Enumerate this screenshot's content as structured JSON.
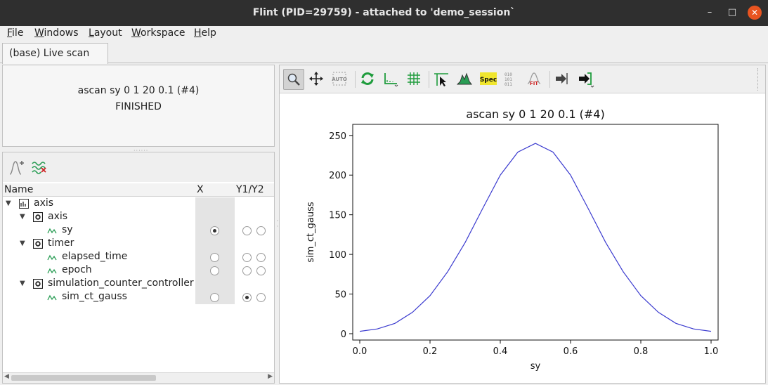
{
  "window": {
    "title": "Flint (PID=29759) - attached to 'demo_session`",
    "minimize_glyph": "–",
    "maximize_glyph": "□",
    "close_glyph": "✕"
  },
  "menu": {
    "file": {
      "accel": "F",
      "rest": "ile"
    },
    "windows": {
      "accel": "W",
      "rest": "indows"
    },
    "layout": {
      "accel": "L",
      "rest": "ayout"
    },
    "workspace": {
      "accel": "W",
      "rest": "orkspace"
    },
    "help": {
      "accel": "H",
      "rest": "elp"
    }
  },
  "tab": {
    "label": "(base) Live scan"
  },
  "scan": {
    "title": "ascan sy 0 1 20 0.1 (#4)",
    "status": "FINISHED"
  },
  "tree": {
    "columns": {
      "name": "Name",
      "x": "X",
      "y": "Y1/Y2"
    },
    "rows": [
      {
        "label": "axis",
        "icon": "axis-group-icon"
      },
      {
        "label": "axis",
        "icon": "device-icon"
      },
      {
        "label": "sy",
        "icon": "channel-icon",
        "x_selected": true,
        "y1": false,
        "y2": false
      },
      {
        "label": "timer",
        "icon": "device-icon"
      },
      {
        "label": "elapsed_time",
        "icon": "channel-icon",
        "x_selected": false,
        "y1": false,
        "y2": false
      },
      {
        "label": "epoch",
        "icon": "channel-icon",
        "x_selected": false,
        "y1": false,
        "y2": false
      },
      {
        "label": "simulation_counter_controller",
        "icon": "device-icon"
      },
      {
        "label": "sim_ct_gauss",
        "icon": "channel-icon",
        "x_selected": false,
        "y1": true,
        "y2": false
      }
    ]
  },
  "plot_toolbar": {
    "icons": [
      "zoom-icon",
      "pan-icon",
      "auto-scale-icon",
      "refresh-icon",
      "axis-scale-icon",
      "grid-icon",
      "marker-icon",
      "statistics-icon",
      "spec-icon",
      "raw-data-icon",
      "fit-icon",
      "export-icon",
      "export-menu-icon"
    ],
    "auto_label": "AUTO",
    "spec_label": "Spec",
    "raw_label_top": "010",
    "raw_label_mid": "101",
    "raw_label_bot": "011",
    "fit_label": "FIT"
  },
  "chart_data": {
    "type": "line",
    "title": "ascan sy 0 1 20 0.1 (#4)",
    "xlabel": "sy",
    "ylabel": "sim_ct_gauss",
    "xlim": [
      -0.02,
      1.02
    ],
    "ylim": [
      -8,
      264
    ],
    "xticks": [
      0.0,
      0.2,
      0.4,
      0.6,
      0.8,
      1.0
    ],
    "xtick_labels": [
      "0.0",
      "0.2",
      "0.4",
      "0.6",
      "0.8",
      "1.0"
    ],
    "yticks": [
      0,
      50,
      100,
      150,
      200,
      250
    ],
    "ytick_labels": [
      "0",
      "50",
      "100",
      "150",
      "200",
      "250"
    ],
    "grid": false,
    "color": "#3b3bcf",
    "series": [
      {
        "x": [
          0.0,
          0.05,
          0.1,
          0.15,
          0.2,
          0.25,
          0.3,
          0.35,
          0.4,
          0.45,
          0.5,
          0.55,
          0.6,
          0.65,
          0.7,
          0.75,
          0.8,
          0.85,
          0.9,
          0.95,
          1.0
        ],
        "y": [
          3,
          6,
          13,
          27,
          48,
          78,
          115,
          158,
          200,
          229,
          240,
          229,
          200,
          158,
          115,
          78,
          48,
          27,
          13,
          6,
          3
        ]
      }
    ]
  }
}
